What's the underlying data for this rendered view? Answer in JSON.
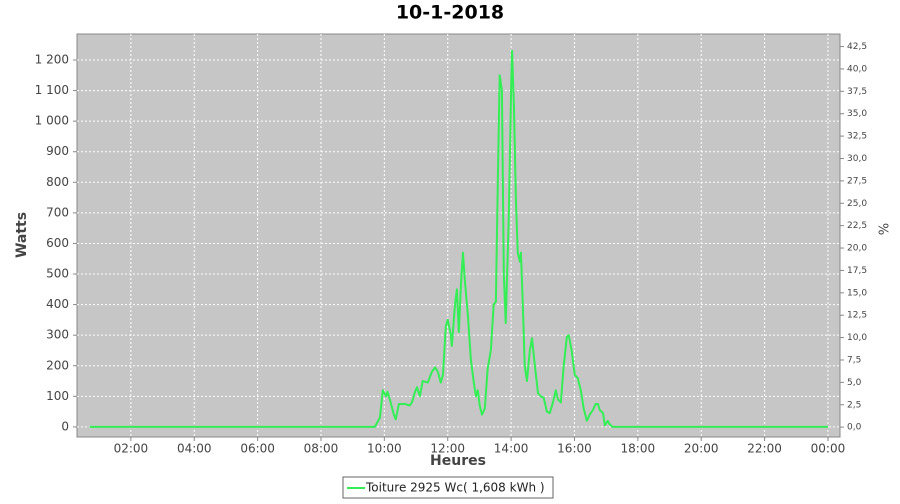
{
  "chart_data": {
    "type": "line",
    "title": "10-1-2018",
    "xlabel": "Heures",
    "ylabel": "Watts",
    "y2label": "%",
    "plot_background": "#c6c6c6",
    "grid": true,
    "xlim": [
      0.3,
      24.38
    ],
    "xticks": [
      {
        "value": 2,
        "label": "02:00"
      },
      {
        "value": 4,
        "label": "04:00"
      },
      {
        "value": 6,
        "label": "06:00"
      },
      {
        "value": 8,
        "label": "08:00"
      },
      {
        "value": 10,
        "label": "10:00"
      },
      {
        "value": 12,
        "label": "12:00"
      },
      {
        "value": 14,
        "label": "14:00"
      },
      {
        "value": 16,
        "label": "16:00"
      },
      {
        "value": 18,
        "label": "18:00"
      },
      {
        "value": 20,
        "label": "20:00"
      },
      {
        "value": 22,
        "label": "22:00"
      },
      {
        "value": 24,
        "label": "00:00"
      }
    ],
    "ylim": [
      -33,
      1285
    ],
    "yticks": [
      0,
      100,
      200,
      300,
      400,
      500,
      600,
      700,
      800,
      900,
      {
        "value": 1000,
        "label": "1 000"
      },
      {
        "value": 1100,
        "label": "1 100"
      },
      {
        "value": 1200,
        "label": "1 200"
      }
    ],
    "y2lim": [
      -1.1,
      43.9
    ],
    "y2ticks": [
      {
        "value": 0,
        "label": "0,0"
      },
      {
        "value": 2.5,
        "label": "2,5"
      },
      {
        "value": 5,
        "label": "5,0"
      },
      {
        "value": 7.5,
        "label": "7,5"
      },
      {
        "value": 10,
        "label": "10,0"
      },
      {
        "value": 12.5,
        "label": "12,5"
      },
      {
        "value": 15,
        "label": "15,0"
      },
      {
        "value": 17.5,
        "label": "17,5"
      },
      {
        "value": 20,
        "label": "20,0"
      },
      {
        "value": 22.5,
        "label": "22,5"
      },
      {
        "value": 25,
        "label": "25,0"
      },
      {
        "value": 27.5,
        "label": "27,5"
      },
      {
        "value": 30,
        "label": "30,0"
      },
      {
        "value": 32.5,
        "label": "32,5"
      },
      {
        "value": 35,
        "label": "35,0"
      },
      {
        "value": 37.5,
        "label": "37,5"
      },
      {
        "value": 40,
        "label": "40,0"
      },
      {
        "value": 42.5,
        "label": "42,5"
      }
    ],
    "x": [
      0.7,
      9.7,
      9.86,
      9.95,
      10.05,
      10.1,
      10.2,
      10.3,
      10.36,
      10.46,
      10.65,
      10.8,
      10.87,
      10.97,
      11.03,
      11.12,
      11.21,
      11.37,
      11.5,
      11.6,
      11.69,
      11.78,
      11.85,
      11.94,
      12.0,
      12.1,
      12.13,
      12.23,
      12.29,
      12.35,
      12.42,
      12.48,
      12.54,
      12.64,
      12.73,
      12.83,
      12.89,
      12.95,
      13.01,
      13.08,
      13.17,
      13.26,
      13.36,
      13.45,
      13.52,
      13.58,
      13.64,
      13.71,
      13.77,
      13.83,
      13.93,
      14.0,
      14.03,
      14.09,
      14.15,
      14.21,
      14.28,
      14.31,
      14.37,
      14.43,
      14.5,
      14.59,
      14.66,
      14.75,
      14.85,
      14.94,
      15.03,
      15.13,
      15.22,
      15.32,
      15.41,
      15.48,
      15.57,
      15.66,
      15.76,
      15.82,
      15.91,
      16.01,
      16.1,
      16.2,
      16.29,
      16.39,
      16.48,
      16.58,
      16.67,
      16.74,
      16.8,
      16.9,
      16.96,
      17.05,
      17.1,
      17.2,
      24.0
    ],
    "series": [
      {
        "name": "Toiture 2925 Wc( 1,608 kWh )",
        "color": "#33ee55",
        "values": [
          0,
          0,
          30,
          120,
          100,
          115,
          80,
          40,
          25,
          75,
          75,
          70,
          80,
          115,
          130,
          100,
          150,
          145,
          180,
          195,
          180,
          145,
          170,
          330,
          350,
          300,
          265,
          400,
          450,
          310,
          470,
          570,
          480,
          360,
          220,
          140,
          100,
          120,
          70,
          40,
          60,
          190,
          250,
          400,
          410,
          800,
          1150,
          1100,
          500,
          340,
          700,
          1100,
          1230,
          1050,
          750,
          570,
          540,
          570,
          400,
          200,
          150,
          250,
          290,
          200,
          110,
          100,
          95,
          50,
          45,
          80,
          120,
          90,
          80,
          200,
          295,
          300,
          250,
          170,
          160,
          120,
          60,
          20,
          40,
          55,
          75,
          75,
          55,
          45,
          5,
          20,
          10,
          0,
          0
        ]
      }
    ]
  }
}
